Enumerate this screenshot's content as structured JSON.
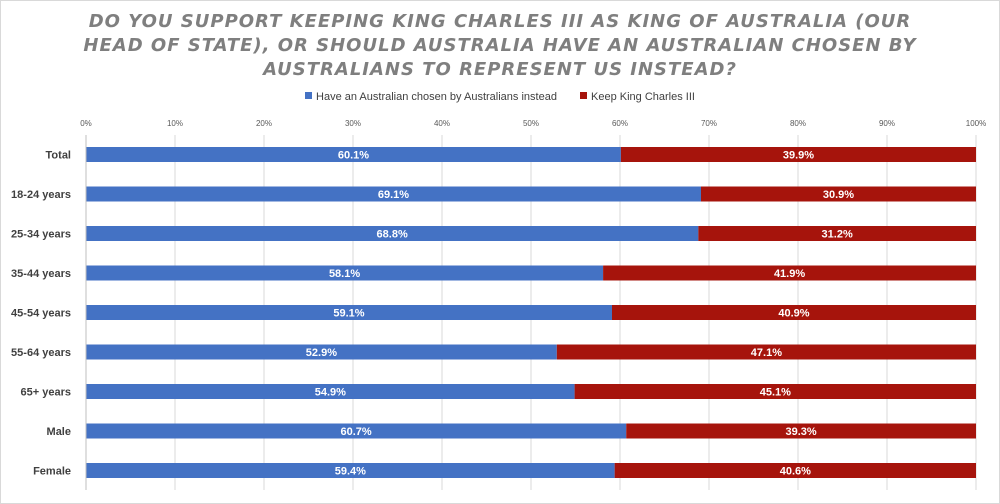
{
  "colors": {
    "primary": "#4472c4",
    "secondary": "#a6140c",
    "title": "#7f7f7f",
    "grid": "#d9d9d9"
  },
  "chart_data": {
    "type": "bar",
    "orientation": "horizontal",
    "stacked": true,
    "title": "DO YOU SUPPORT KEEPING KING CHARLES III AS KING OF AUSTRALIA (OUR HEAD OF STATE), OR SHOULD AUSTRALIA HAVE AN AUSTRALIAN CHOSEN BY AUSTRALIANS TO REPRESENT US INSTEAD?",
    "categories": [
      "Total",
      "18-24 years",
      "25-34 years",
      "35-44 years",
      "45-54 years",
      "55-64 years",
      "65+ years",
      "Male",
      "Female"
    ],
    "series": [
      {
        "name": "Have an Australian chosen by Australians instead",
        "color": "#4472c4",
        "values": [
          60.1,
          69.1,
          68.8,
          58.1,
          59.1,
          52.9,
          54.9,
          60.7,
          59.4
        ]
      },
      {
        "name": "Keep King Charles III",
        "color": "#a6140c",
        "values": [
          39.9,
          30.9,
          31.2,
          41.9,
          40.9,
          47.1,
          45.1,
          39.3,
          40.6
        ]
      }
    ],
    "xlim": [
      0,
      100
    ],
    "xticks": [
      0,
      10,
      20,
      30,
      40,
      50,
      60,
      70,
      80,
      90,
      100
    ],
    "tick_suffix": "%",
    "value_suffix": "%",
    "grid": true,
    "legend_position": "top"
  }
}
